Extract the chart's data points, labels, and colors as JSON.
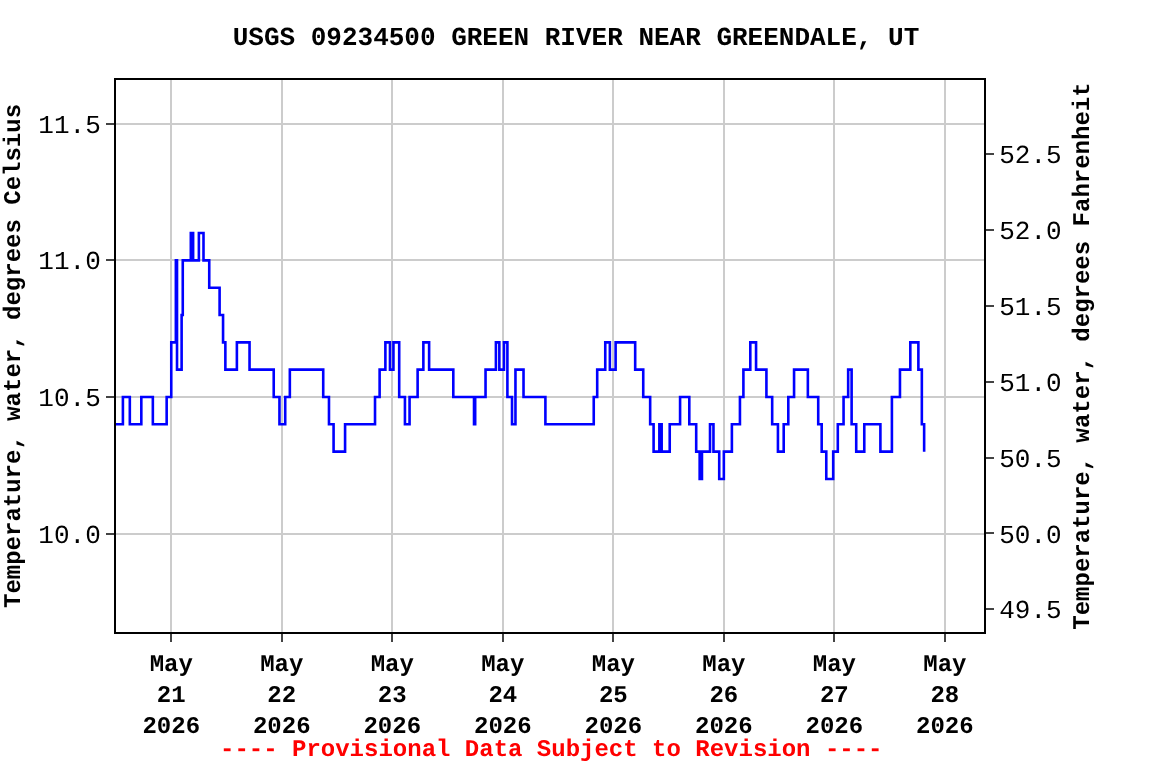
{
  "chart_data": {
    "type": "step",
    "title": "USGS 09234500 GREEN RIVER NEAR GREENDALE, UT",
    "ylabel": "Temperature, water, degrees Celsius",
    "y2label": "Temperature, water, degrees Fahrenheit",
    "annotations": [
      "---- Provisional Data Subject to Revision ----"
    ],
    "x": [
      "2026-05-20T12:00",
      "2026-05-20T13:30",
      "2026-05-20T15:00",
      "2026-05-20T17:30",
      "2026-05-20T20:00",
      "2026-05-20T23:00",
      "2026-05-21T00:00",
      "2026-05-21T01:00",
      "2026-05-21T01:15",
      "2026-05-21T02:15",
      "2026-05-21T02:30",
      "2026-05-21T04:00",
      "2026-05-21T04:15",
      "2026-05-21T04:45",
      "2026-05-21T06:00",
      "2026-05-21T07:00",
      "2026-05-21T08:15",
      "2026-05-21T10:30",
      "2026-05-21T11:15",
      "2026-05-21T11:45",
      "2026-05-21T14:15",
      "2026-05-21T17:00",
      "2026-05-21T22:15",
      "2026-05-21T23:30",
      "2026-05-22T00:45",
      "2026-05-22T01:45",
      "2026-05-22T09:00",
      "2026-05-22T10:15",
      "2026-05-22T11:15",
      "2026-05-22T13:45",
      "2026-05-22T20:15",
      "2026-05-22T21:15",
      "2026-05-22T22:30",
      "2026-05-22T23:30",
      "2026-05-23T00:15",
      "2026-05-23T01:30",
      "2026-05-23T02:45",
      "2026-05-23T03:45",
      "2026-05-23T05:30",
      "2026-05-23T06:45",
      "2026-05-23T08:00",
      "2026-05-23T13:15",
      "2026-05-23T17:45",
      "2026-05-23T18:00",
      "2026-05-23T20:15",
      "2026-05-23T22:30",
      "2026-05-23T23:15",
      "2026-05-24T00:15",
      "2026-05-24T01:00",
      "2026-05-24T02:00",
      "2026-05-24T02:45",
      "2026-05-24T04:30",
      "2026-05-24T09:15",
      "2026-05-24T19:45",
      "2026-05-24T20:30",
      "2026-05-24T22:15",
      "2026-05-24T23:15",
      "2026-05-25T00:30",
      "2026-05-25T04:45",
      "2026-05-25T06:30",
      "2026-05-25T08:00",
      "2026-05-25T08:45",
      "2026-05-25T10:00",
      "2026-05-25T10:30",
      "2026-05-25T12:15",
      "2026-05-25T14:30",
      "2026-05-25T16:30",
      "2026-05-25T18:00",
      "2026-05-25T18:45",
      "2026-05-25T19:15",
      "2026-05-25T21:00",
      "2026-05-25T21:45",
      "2026-05-25T23:00",
      "2026-05-26T00:00",
      "2026-05-26T01:45",
      "2026-05-26T03:30",
      "2026-05-26T04:15",
      "2026-05-26T05:45",
      "2026-05-26T07:00",
      "2026-05-26T09:15",
      "2026-05-26T10:30",
      "2026-05-26T11:45",
      "2026-05-26T13:00",
      "2026-05-26T14:00",
      "2026-05-26T15:15",
      "2026-05-26T18:15",
      "2026-05-26T20:30",
      "2026-05-26T21:15",
      "2026-05-26T22:15",
      "2026-05-26T23:45",
      "2026-05-27T00:45",
      "2026-05-27T02:00",
      "2026-05-27T03:00",
      "2026-05-27T03:45",
      "2026-05-27T04:45",
      "2026-05-27T06:30",
      "2026-05-27T10:00",
      "2026-05-27T12:30",
      "2026-05-27T14:15",
      "2026-05-27T16:30",
      "2026-05-27T18:15",
      "2026-05-27T19:00",
      "2026-05-27T19:30"
    ],
    "series": [
      {
        "color": "#0000ff",
        "values": [
          10.4,
          10.5,
          10.4,
          10.5,
          10.4,
          10.5,
          10.7,
          11.0,
          10.6,
          10.8,
          11.0,
          11.0,
          11.1,
          11.0,
          11.1,
          11.0,
          10.9,
          10.8,
          10.7,
          10.6,
          10.7,
          10.6,
          10.5,
          10.4,
          10.5,
          10.6,
          10.5,
          10.4,
          10.3,
          10.4,
          10.5,
          10.6,
          10.7,
          10.6,
          10.7,
          10.5,
          10.4,
          10.5,
          10.6,
          10.7,
          10.6,
          10.5,
          10.4,
          10.5,
          10.6,
          10.7,
          10.6,
          10.7,
          10.5,
          10.4,
          10.6,
          10.5,
          10.4,
          10.5,
          10.6,
          10.7,
          10.6,
          10.7,
          10.6,
          10.5,
          10.4,
          10.3,
          10.4,
          10.3,
          10.4,
          10.5,
          10.4,
          10.3,
          10.2,
          10.3,
          10.4,
          10.3,
          10.2,
          10.3,
          10.4,
          10.5,
          10.6,
          10.7,
          10.6,
          10.5,
          10.4,
          10.3,
          10.4,
          10.5,
          10.6,
          10.5,
          10.4,
          10.3,
          10.2,
          10.3,
          10.4,
          10.5,
          10.6,
          10.4,
          10.3,
          10.4,
          10.3,
          10.5,
          10.6,
          10.7,
          10.6,
          10.4,
          10.3
        ]
      }
    ],
    "xlim": [
      "2026-05-20T12:00",
      "2026-05-28T08:30"
    ],
    "xticks": [
      {
        "value": "2026-05-21",
        "label": "May\n21\n2026"
      },
      {
        "value": "2026-05-22",
        "label": "May\n22\n2026"
      },
      {
        "value": "2026-05-23",
        "label": "May\n23\n2026"
      },
      {
        "value": "2026-05-24",
        "label": "May\n24\n2026"
      },
      {
        "value": "2026-05-25",
        "label": "May\n25\n2026"
      },
      {
        "value": "2026-05-26",
        "label": "May\n26\n2026"
      },
      {
        "value": "2026-05-27",
        "label": "May\n27\n2026"
      },
      {
        "value": "2026-05-28",
        "label": "May\n28\n2026"
      }
    ],
    "ylim": [
      9.64,
      11.66
    ],
    "yticks": [
      {
        "value": 10,
        "label": "10.0"
      },
      10.5,
      {
        "value": 11,
        "label": "11.0"
      },
      11.5
    ],
    "y2lim": [
      49.35,
      52.99
    ],
    "y2ticks": [
      49.5,
      {
        "value": 50,
        "label": "50.0"
      },
      50.5,
      {
        "value": 51,
        "label": "51.0"
      },
      51.5,
      {
        "value": 52,
        "label": "52.0"
      },
      52.5
    ],
    "grid": true,
    "line_style": "solid",
    "marker": "none"
  }
}
